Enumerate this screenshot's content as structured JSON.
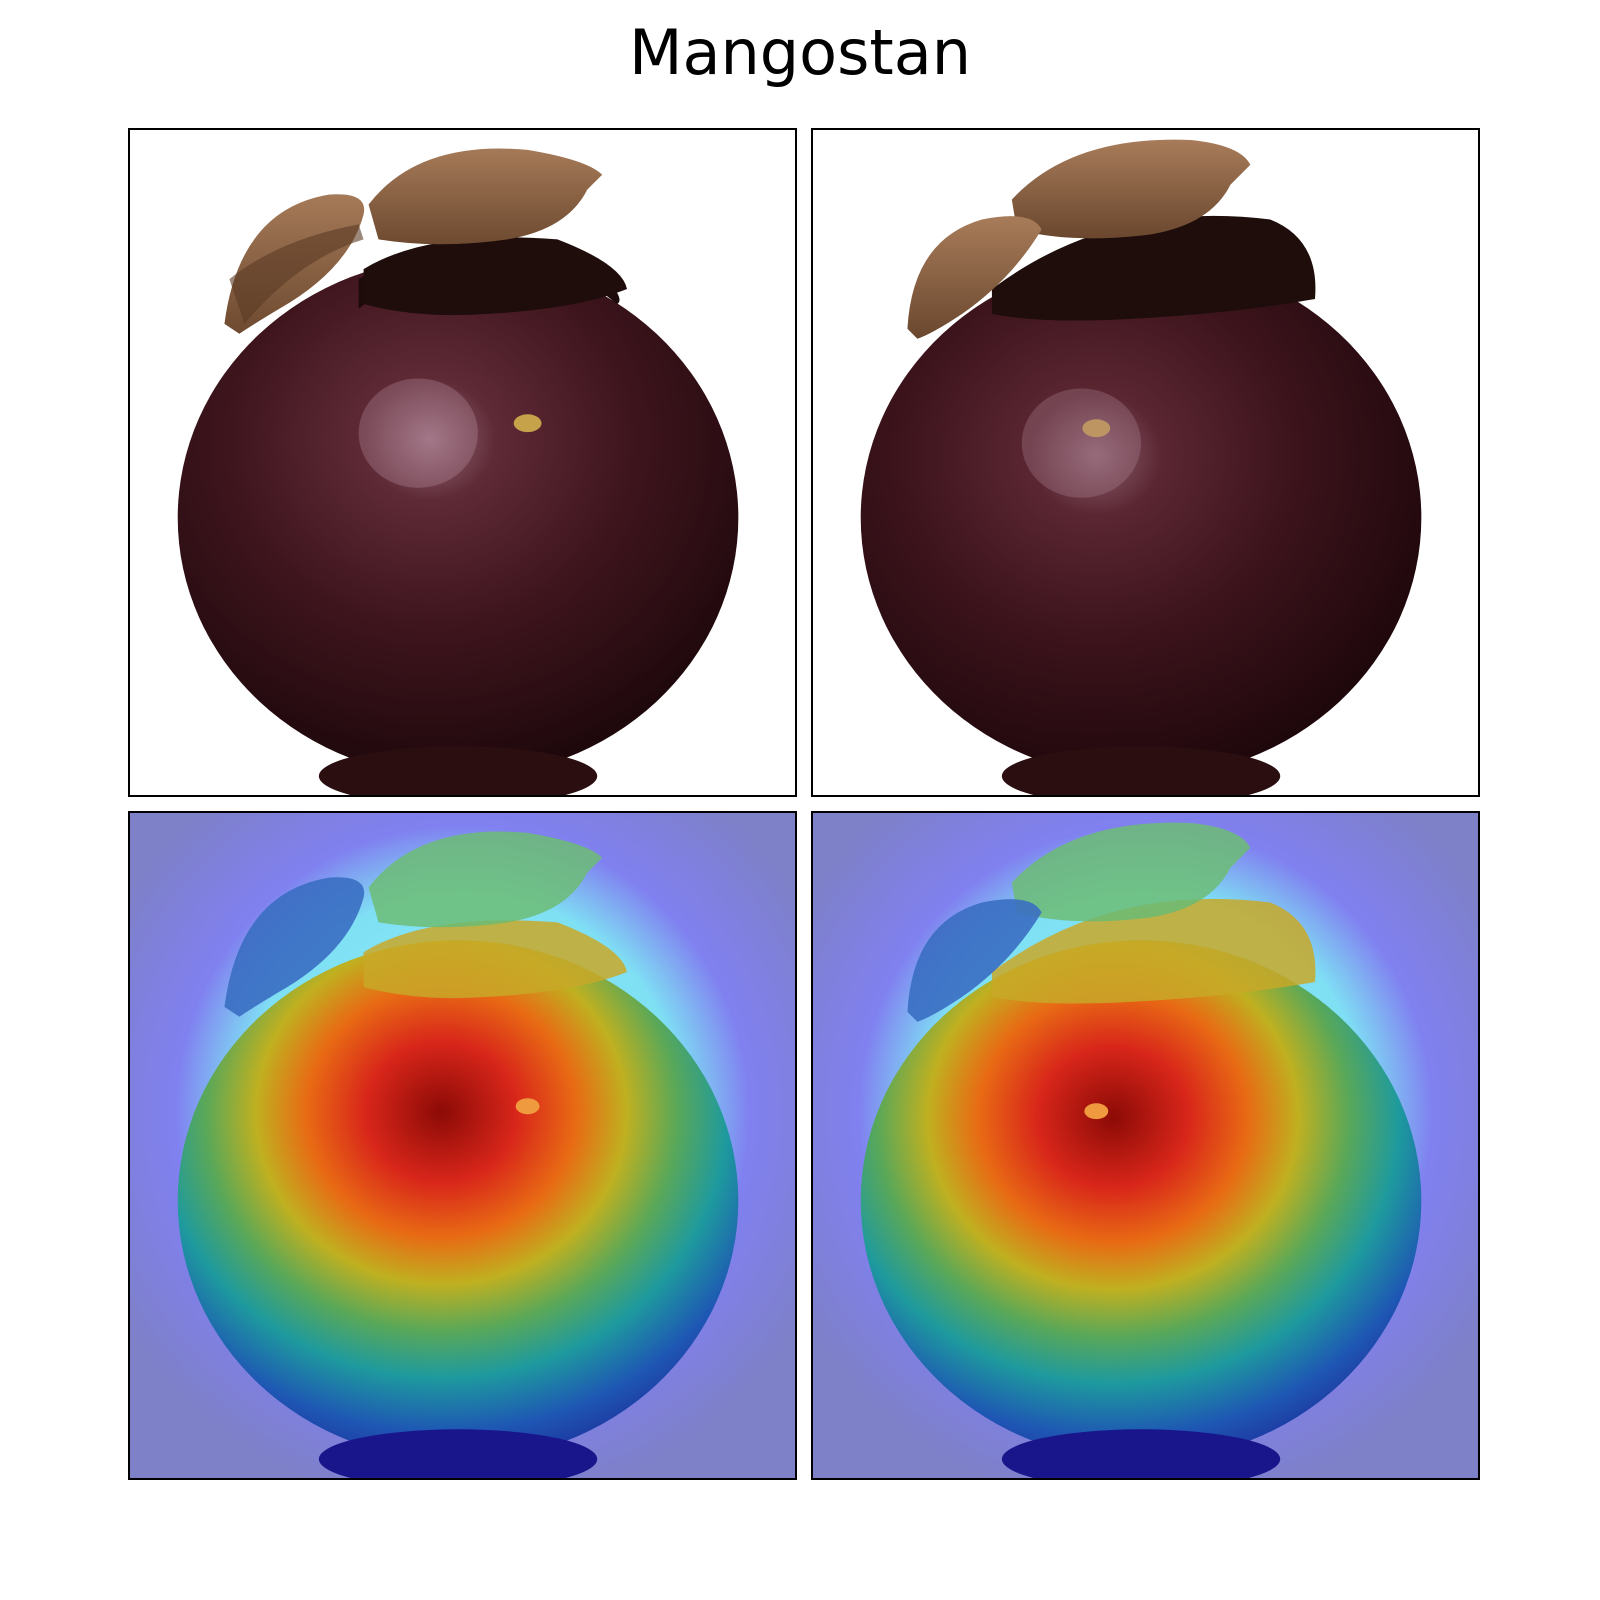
{
  "figure": {
    "title": "Mangostan"
  },
  "panels": [
    {
      "name": "original-image-left",
      "kind": "photo"
    },
    {
      "name": "original-image-right",
      "kind": "photo"
    },
    {
      "name": "heatmap-overlay-left",
      "kind": "heatmap"
    },
    {
      "name": "heatmap-overlay-right",
      "kind": "heatmap"
    }
  ],
  "colors": {
    "fruit_dark": "#2a0e14",
    "fruit_mid": "#4a1a22",
    "fruit_highlight": "#8a5a6a",
    "calyx": "#8a6244",
    "calyx_dark": "#1e0d0a",
    "heat_background": "#7f80d0",
    "heat_hot": "#9c0e06",
    "heat_cold": "#1e2a9c"
  }
}
